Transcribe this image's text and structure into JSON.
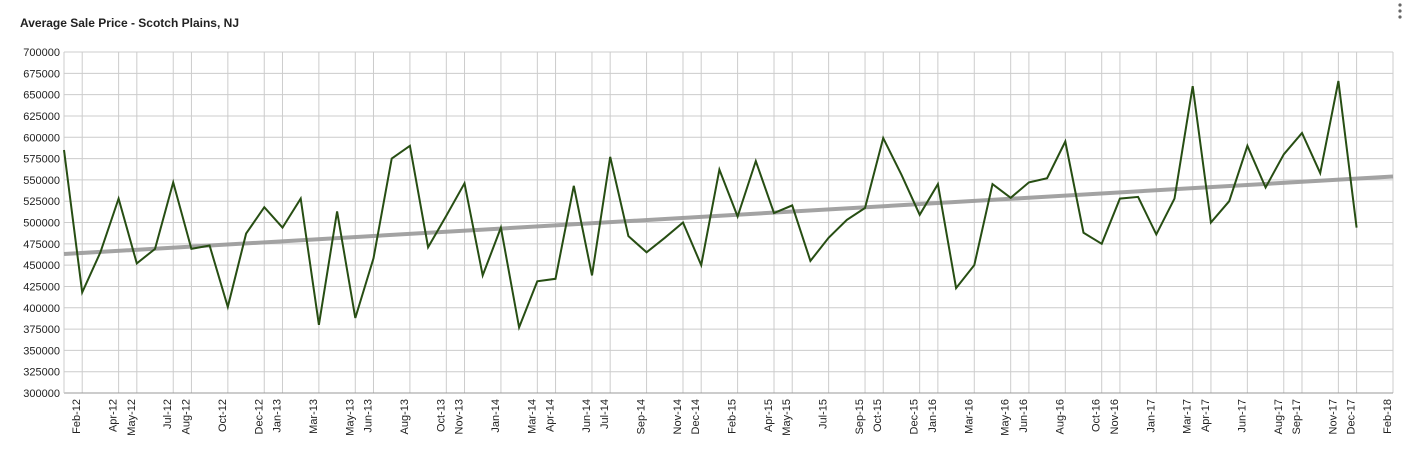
{
  "chart_data": {
    "type": "line",
    "title": "Average Sale Price - Scotch Plains, NJ",
    "x": [
      "2012-01",
      "2012-02",
      "2012-03",
      "2012-04",
      "2012-05",
      "2012-06",
      "2012-07",
      "2012-08",
      "2012-09",
      "2012-10",
      "2012-11",
      "2012-12",
      "2013-01",
      "2013-02",
      "2013-03",
      "2013-04",
      "2013-05",
      "2013-06",
      "2013-07",
      "2013-08",
      "2013-09",
      "2013-10",
      "2013-11",
      "2013-12",
      "2014-01",
      "2014-02",
      "2014-03",
      "2014-04",
      "2014-05",
      "2014-06",
      "2014-07",
      "2014-08",
      "2014-09",
      "2014-10",
      "2014-11",
      "2014-12",
      "2015-01",
      "2015-02",
      "2015-03",
      "2015-04",
      "2015-05",
      "2015-06",
      "2015-07",
      "2015-08",
      "2015-09",
      "2015-10",
      "2015-11",
      "2015-12",
      "2016-01",
      "2016-02",
      "2016-03",
      "2016-04",
      "2016-05",
      "2016-06",
      "2016-07",
      "2016-08",
      "2016-09",
      "2016-10",
      "2016-11",
      "2016-12",
      "2017-01",
      "2017-02",
      "2017-03",
      "2017-04",
      "2017-05",
      "2017-06",
      "2017-07",
      "2017-08",
      "2017-09",
      "2017-10",
      "2017-11",
      "2017-12"
    ],
    "series": [
      {
        "color": "#274e13",
        "values": [
          585000,
          418000,
          465000,
          528000,
          452000,
          469000,
          547000,
          469000,
          473000,
          401000,
          487000,
          518000,
          494000,
          528000,
          380000,
          513000,
          388000,
          458000,
          575000,
          590000,
          471000,
          508000,
          546000,
          438000,
          494000,
          377000,
          431000,
          434000,
          543000,
          438000,
          577000,
          484000,
          465000,
          482000,
          500000,
          450000,
          562000,
          507000,
          572000,
          511000,
          520000,
          455000,
          482000,
          503000,
          517000,
          599000,
          556000,
          509000,
          545000,
          423000,
          450000,
          545000,
          529000,
          547000,
          552000,
          595000,
          488000,
          475000,
          528000,
          530000,
          486000,
          528000,
          660000,
          500000,
          525000,
          590000,
          541000,
          580000,
          605000,
          558000,
          666000,
          494000
        ]
      }
    ],
    "trend": {
      "start": 463000,
      "end": 554000,
      "color": "#999999"
    },
    "xlim": [
      "2012-01",
      "2018-02"
    ],
    "xticks": [
      {
        "value": "2012-02",
        "label": "Feb-12"
      },
      {
        "value": "2012-04",
        "label": "Apr-12"
      },
      {
        "value": "2012-05",
        "label": "May-12"
      },
      {
        "value": "2012-07",
        "label": "Jul-12"
      },
      {
        "value": "2012-08",
        "label": "Aug-12"
      },
      {
        "value": "2012-10",
        "label": "Oct-12"
      },
      {
        "value": "2012-12",
        "label": "Dec-12"
      },
      {
        "value": "2013-01",
        "label": "Jan-13"
      },
      {
        "value": "2013-03",
        "label": "Mar-13"
      },
      {
        "value": "2013-05",
        "label": "May-13"
      },
      {
        "value": "2013-06",
        "label": "Jun-13"
      },
      {
        "value": "2013-08",
        "label": "Aug-13"
      },
      {
        "value": "2013-10",
        "label": "Oct-13"
      },
      {
        "value": "2013-11",
        "label": "Nov-13"
      },
      {
        "value": "2014-01",
        "label": "Jan-14"
      },
      {
        "value": "2014-03",
        "label": "Mar-14"
      },
      {
        "value": "2014-04",
        "label": "Apr-14"
      },
      {
        "value": "2014-06",
        "label": "Jun-14"
      },
      {
        "value": "2014-07",
        "label": "Jul-14"
      },
      {
        "value": "2014-09",
        "label": "Sep-14"
      },
      {
        "value": "2014-11",
        "label": "Nov-14"
      },
      {
        "value": "2014-12",
        "label": "Dec-14"
      },
      {
        "value": "2015-02",
        "label": "Feb-15"
      },
      {
        "value": "2015-04",
        "label": "Apr-15"
      },
      {
        "value": "2015-05",
        "label": "May-15"
      },
      {
        "value": "2015-07",
        "label": "Jul-15"
      },
      {
        "value": "2015-09",
        "label": "Sep-15"
      },
      {
        "value": "2015-10",
        "label": "Oct-15"
      },
      {
        "value": "2015-12",
        "label": "Dec-15"
      },
      {
        "value": "2016-01",
        "label": "Jan-16"
      },
      {
        "value": "2016-03",
        "label": "Mar-16"
      },
      {
        "value": "2016-05",
        "label": "May-16"
      },
      {
        "value": "2016-06",
        "label": "Jun-16"
      },
      {
        "value": "2016-08",
        "label": "Aug-16"
      },
      {
        "value": "2016-10",
        "label": "Oct-16"
      },
      {
        "value": "2016-11",
        "label": "Nov-16"
      },
      {
        "value": "2017-01",
        "label": "Jan-17"
      },
      {
        "value": "2017-03",
        "label": "Mar-17"
      },
      {
        "value": "2017-04",
        "label": "Apr-17"
      },
      {
        "value": "2017-06",
        "label": "Jun-17"
      },
      {
        "value": "2017-08",
        "label": "Aug-17"
      },
      {
        "value": "2017-09",
        "label": "Sep-17"
      },
      {
        "value": "2017-11",
        "label": "Nov-17"
      },
      {
        "value": "2017-12",
        "label": "Dec-17"
      },
      {
        "value": "2018-02",
        "label": "Feb-18"
      }
    ],
    "ylim": [
      300000,
      700000
    ],
    "yticks": [
      300000,
      325000,
      350000,
      375000,
      400000,
      425000,
      450000,
      475000,
      500000,
      525000,
      550000,
      575000,
      600000,
      625000,
      650000,
      675000,
      700000
    ],
    "grid": true
  }
}
